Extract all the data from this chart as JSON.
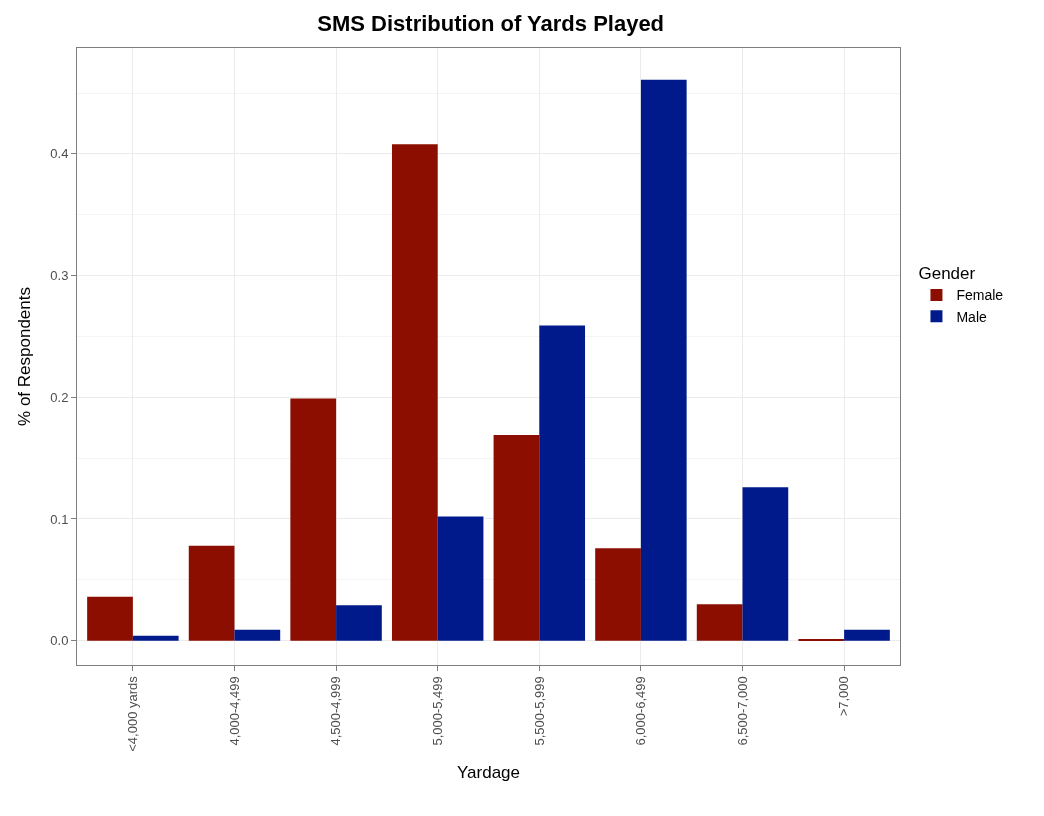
{
  "chart_data": {
    "type": "bar",
    "title": "SMS Distribution of Yards Played",
    "xlabel": "Yardage",
    "ylabel": "% of Respondents",
    "legend_title": "Gender",
    "categories": [
      "<4,000 yards",
      "4,000-4,499",
      "4,500-4,999",
      "5,000-5,499",
      "5,500-5,999",
      "6,000-6,499",
      "6,500-7,000",
      ">7,000"
    ],
    "series": [
      {
        "name": "Female",
        "color": "#8b0e00",
        "values": [
          0.036,
          0.078,
          0.199,
          0.408,
          0.169,
          0.076,
          0.03,
          0.001
        ]
      },
      {
        "name": "Male",
        "color": "#001a8b",
        "values": [
          0.004,
          0.009,
          0.029,
          0.102,
          0.259,
          0.461,
          0.126,
          0.009
        ]
      }
    ],
    "ylim": [
      -0.02,
      0.487
    ],
    "yticks": [
      {
        "value": 0,
        "label": "0.0"
      },
      0.1,
      0.2,
      0.3,
      0.4
    ],
    "grid": true,
    "legend": "right"
  }
}
